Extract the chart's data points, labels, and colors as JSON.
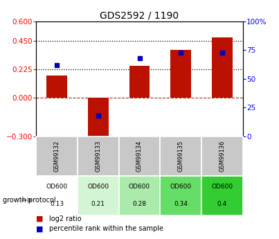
{
  "title": "GDS2592 / 1190",
  "samples": [
    "GSM99132",
    "GSM99133",
    "GSM99134",
    "GSM99135",
    "GSM99136"
  ],
  "log2_ratio": [
    0.175,
    -0.365,
    0.255,
    0.38,
    0.475
  ],
  "percentile_rank": [
    62,
    18,
    68,
    73,
    73
  ],
  "protocol_label": "growth protocol",
  "protocol_values_line1": [
    "OD600",
    "OD600",
    "OD600",
    "OD600",
    "OD600"
  ],
  "protocol_values_line2": [
    "0.13",
    "0.21",
    "0.28",
    "0.34",
    "0.4"
  ],
  "protocol_colors": [
    "#ffffff",
    "#d4f5d4",
    "#aaeaaa",
    "#66dd66",
    "#33cc33"
  ],
  "bar_color": "#bb1100",
  "dot_color": "#0000bb",
  "ylim_left": [
    -0.3,
    0.6
  ],
  "ylim_right": [
    0,
    100
  ],
  "yticks_left": [
    -0.3,
    0,
    0.225,
    0.45,
    0.6
  ],
  "yticks_right": [
    0,
    25,
    50,
    75,
    100
  ],
  "hlines": [
    0.225,
    0.45
  ],
  "sample_bg": "#c8c8c8"
}
